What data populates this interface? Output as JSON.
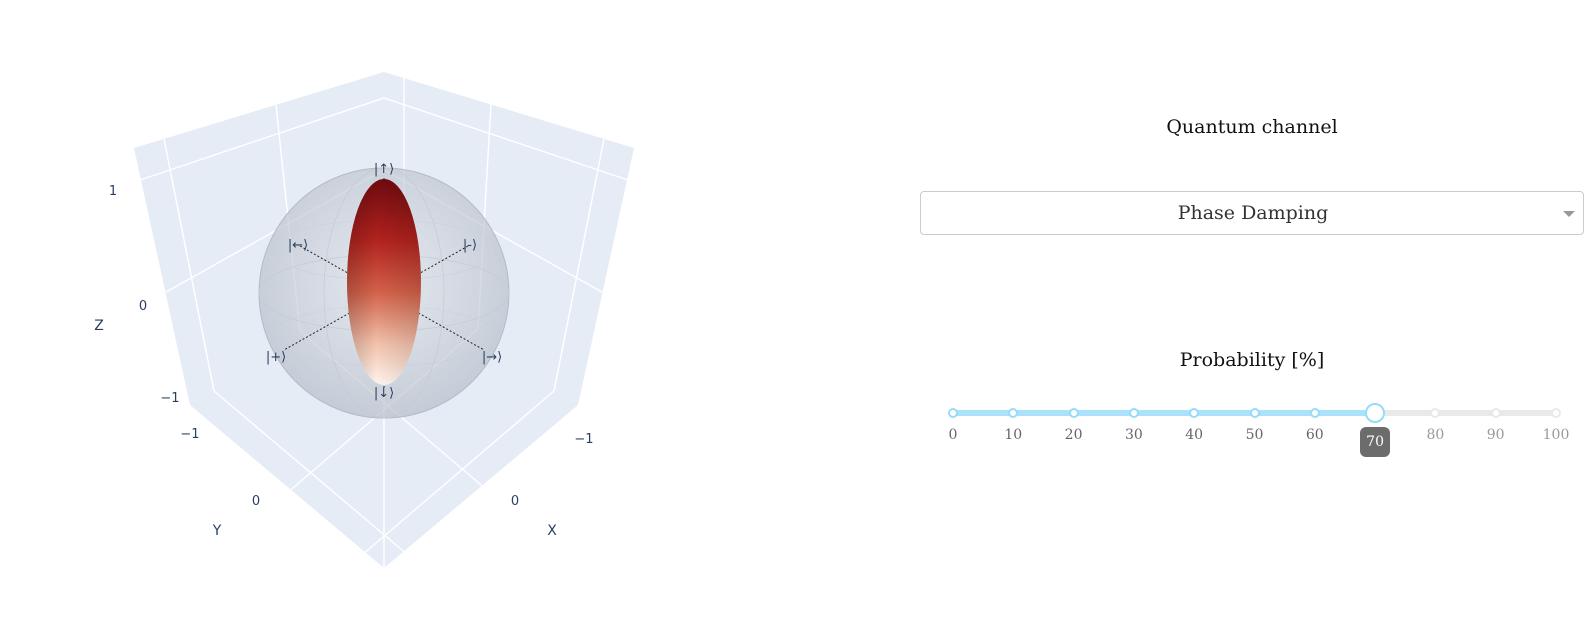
{
  "plot": {
    "axes": {
      "x_title": "X",
      "y_title": "Y",
      "z_title": "Z",
      "x_ticks": [
        "−1",
        "0"
      ],
      "y_ticks": [
        "−1",
        "0"
      ],
      "z_ticks": [
        "−1",
        "0",
        "1"
      ]
    },
    "states": {
      "up": "|↑⟩",
      "down": "|↓⟩",
      "left": "|←⟩",
      "right": "|→⟩",
      "plus": "|+⟩",
      "minus": "|-⟩"
    },
    "colors": {
      "scene_bg": "#e5ecf6",
      "grid": "#ffffff",
      "sphere": "#c7ccd6",
      "ellipsoid_top": "#7a0d10",
      "ellipsoid_bottom": "#fff1ea"
    }
  },
  "controls": {
    "channel_title": "Quantum channel",
    "channel_selected": "Phase Damping",
    "probability_title": "Probability [%]",
    "slider": {
      "min": 0,
      "max": 100,
      "step": 10,
      "value": 70,
      "value_label": "70",
      "marks": [
        "0",
        "10",
        "20",
        "30",
        "40",
        "50",
        "60",
        "70",
        "80",
        "90",
        "100"
      ],
      "track_color": "#abe2fb"
    }
  }
}
